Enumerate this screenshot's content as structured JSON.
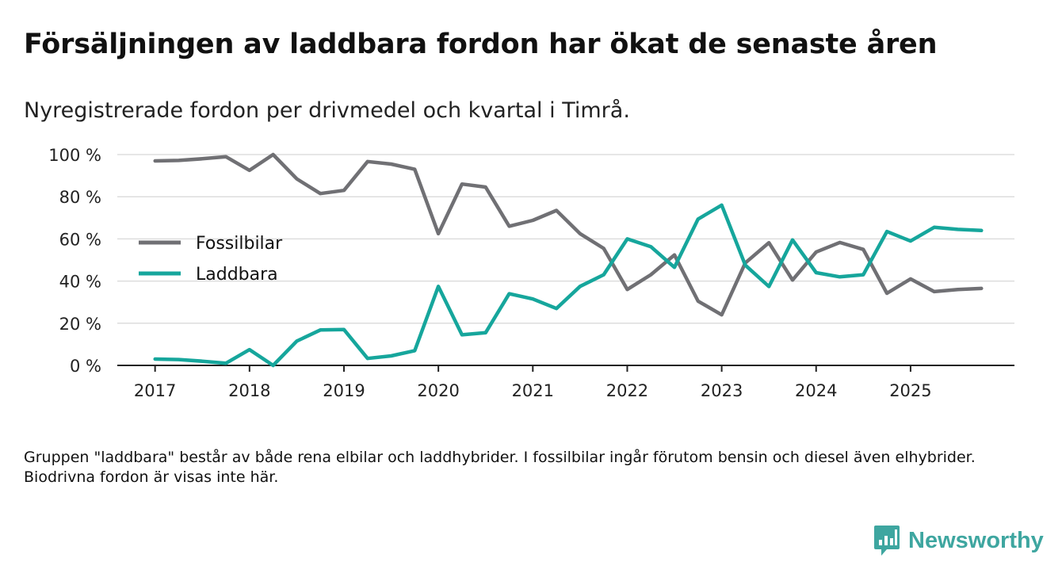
{
  "title": "Försäljningen av laddbara fordon har ökat de senaste åren",
  "subtitle": "Nyregistrerade fordon per drivmedel och kvartal i Timrå.",
  "note": "Gruppen \"laddbara\" består av både rena elbilar och laddhybrider. I fossilbilar ingår förutom bensin och diesel även elhybrider. Biodrivna fordon är visas inte här.",
  "brand": {
    "name": "Newsworthy",
    "icon": "newsworthy-logo-icon"
  },
  "colors": {
    "fossil": "#707074",
    "laddbara": "#16a69c",
    "grid": "#dddddd",
    "axis": "#222222",
    "brand": "#3ea6a0"
  },
  "chart_data": {
    "type": "line",
    "x": [
      2017.0,
      2017.25,
      2017.5,
      2017.75,
      2018.0,
      2018.25,
      2018.5,
      2018.75,
      2019.0,
      2019.25,
      2019.5,
      2019.75,
      2020.0,
      2020.25,
      2020.5,
      2020.75,
      2021.0,
      2021.25,
      2021.5,
      2021.75,
      2022.0,
      2022.25,
      2022.5,
      2022.75,
      2023.0,
      2023.25,
      2023.5,
      2023.75,
      2024.0,
      2024.25,
      2024.5,
      2024.75,
      2025.0,
      2025.25,
      2025.5,
      2025.75
    ],
    "series": [
      {
        "name": "Fossilbilar",
        "color": "#707074",
        "values": [
          97,
          97.2,
          98,
          99,
          92.5,
          100,
          88.5,
          81.5,
          83,
          96.7,
          95.5,
          93,
          62.5,
          86,
          84.6,
          66,
          68.8,
          73.5,
          62.5,
          55.5,
          36,
          43,
          52.4,
          30.5,
          24,
          48.6,
          58.2,
          40.5,
          53.8,
          58.3,
          55,
          34.2,
          41,
          35,
          36,
          36.5
        ]
      },
      {
        "name": "Laddbara",
        "color": "#16a69c",
        "values": [
          3,
          2.8,
          2,
          1,
          7.5,
          0,
          11.5,
          16.8,
          17,
          3.3,
          4.5,
          7,
          37.5,
          14.5,
          15.5,
          34,
          31.5,
          27,
          37.5,
          43,
          60,
          56.3,
          46.5,
          69.4,
          76,
          47.5,
          37.4,
          59.5,
          44,
          42,
          43,
          63.5,
          59,
          65.5,
          64.5,
          64
        ]
      }
    ],
    "x_ticks": [
      "2017",
      "2018",
      "2019",
      "2020",
      "2021",
      "2022",
      "2023",
      "2024",
      "2025"
    ],
    "y_ticks": [
      "0 %",
      "20 %",
      "40 %",
      "60 %",
      "80 %",
      "100 %"
    ],
    "ylim": [
      0,
      100
    ],
    "xlim": [
      2016.6,
      2026.1
    ],
    "xlabel": "",
    "ylabel": "",
    "grid": true,
    "legend_position": "left-middle"
  }
}
